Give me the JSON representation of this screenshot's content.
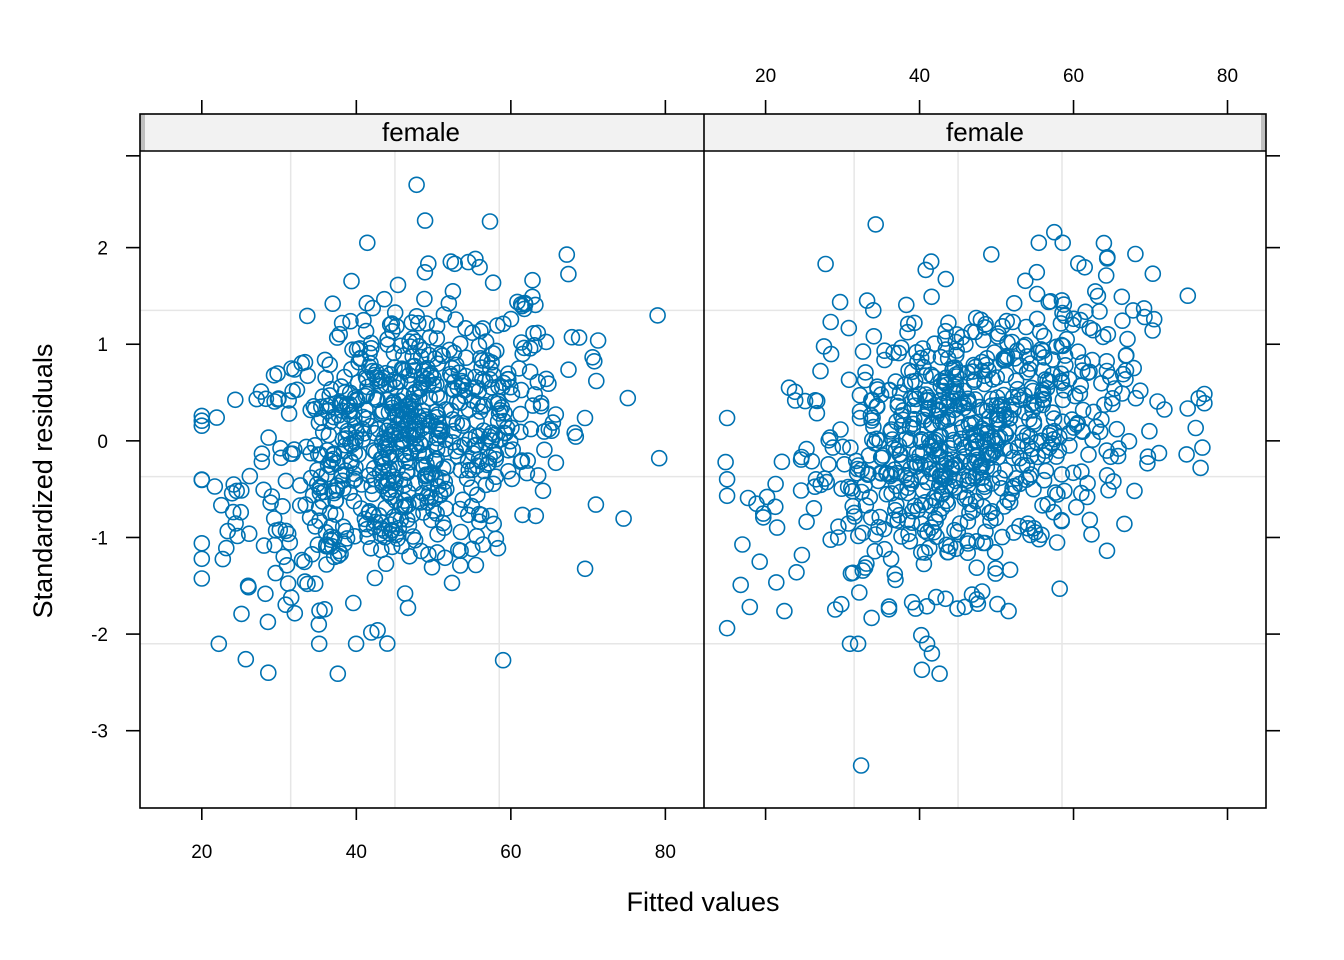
{
  "chart_data": {
    "type": "scatter",
    "xlabel": "Fitted values",
    "ylabel": "Standardized residuals",
    "colors": {
      "points": "#0072b2",
      "strip": "#f2f2f2",
      "grid": "#e6e6e6"
    },
    "grid": true,
    "xlim": [
      12,
      85
    ],
    "ylim": [
      -3.8,
      3.0
    ],
    "x_ticks": [
      20,
      40,
      60,
      80
    ],
    "y_ticks": [
      -3,
      -2,
      -1,
      0,
      1,
      2
    ],
    "x_tick_labels": [
      "20",
      "40",
      "60",
      "80"
    ],
    "y_tick_labels": [
      "-3",
      "-2",
      "-1",
      "0",
      "1",
      "2"
    ],
    "panels": [
      {
        "strip": "female",
        "grid_x": [
          31.5,
          45,
          58.5
        ],
        "grid_y": [
          -2.1,
          -0.37,
          1.35
        ],
        "notable_points": [
          [
            47.8,
            2.65
          ],
          [
            48.9,
            2.28
          ],
          [
            57.3,
            2.27
          ],
          [
            59,
            -2.27
          ],
          [
            28.6,
            -2.4
          ],
          [
            37.6,
            -2.41
          ],
          [
            25.7,
            -2.26
          ],
          [
            20,
            -1.06
          ],
          [
            79.2,
            -0.18
          ]
        ]
      },
      {
        "strip": "female",
        "grid_x": [
          31.5,
          45,
          58.5
        ],
        "grid_y": [
          -2.1,
          -0.37,
          1.35
        ],
        "notable_points": [
          [
            32.4,
            -3.36
          ],
          [
            34.3,
            2.24
          ],
          [
            27.8,
            1.83
          ],
          [
            57.5,
            2.16
          ],
          [
            64.4,
            1.9
          ],
          [
            70.3,
            1.73
          ],
          [
            42.6,
            -2.41
          ],
          [
            41.6,
            -2.2
          ],
          [
            40.3,
            -2.37
          ],
          [
            14.8,
            -0.22
          ],
          [
            76.5,
            -0.28
          ]
        ]
      }
    ]
  }
}
